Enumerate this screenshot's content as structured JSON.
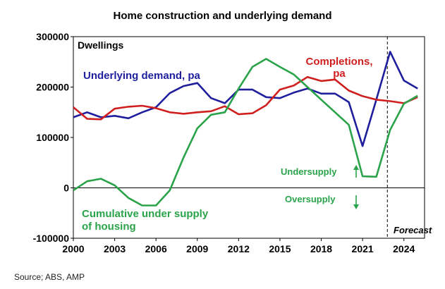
{
  "title": "Home construction and underlying demand",
  "source": "Source; ABS, AMP",
  "chart_data": {
    "type": "line",
    "ylabel": "Dwellings",
    "ylim": [
      -100000,
      300000
    ],
    "xlim": [
      2000,
      2025.5
    ],
    "xticks": [
      2000,
      2003,
      2006,
      2009,
      2012,
      2015,
      2018,
      2021,
      2024
    ],
    "yticks": [
      -100000,
      0,
      100000,
      200000,
      300000
    ],
    "grid": false,
    "forecast_start": 2022.8,
    "annotations": {
      "undersupply": "Undersupply",
      "oversupply": "Oversupply",
      "forecast": "Forecast"
    },
    "series": [
      {
        "name": "Underlying demand, pa",
        "color": "#1f1f9e",
        "x": [
          2000,
          2001,
          2002,
          2003,
          2004,
          2005,
          2006,
          2007,
          2008,
          2009,
          2010,
          2011,
          2012,
          2013,
          2014,
          2015,
          2016,
          2017,
          2018,
          2019,
          2020,
          2021,
          2022,
          2023,
          2024,
          2025
        ],
        "values": [
          140000,
          150000,
          140000,
          143000,
          138000,
          150000,
          160000,
          188000,
          202000,
          208000,
          178000,
          168000,
          195000,
          195000,
          180000,
          178000,
          189000,
          197000,
          187000,
          187000,
          170000,
          83000,
          175000,
          270000,
          213000,
          197000
        ]
      },
      {
        "name": "Completions, pa",
        "color": "#d01f1f",
        "x": [
          2000,
          2001,
          2002,
          2003,
          2004,
          2005,
          2006,
          2007,
          2008,
          2009,
          2010,
          2011,
          2012,
          2013,
          2014,
          2015,
          2016,
          2017,
          2018,
          2019,
          2020,
          2021,
          2022,
          2023,
          2024,
          2025
        ],
        "values": [
          160000,
          137000,
          136000,
          157000,
          161000,
          163000,
          158000,
          150000,
          147000,
          150000,
          152000,
          162000,
          146000,
          148000,
          164000,
          195000,
          203000,
          220000,
          212000,
          215000,
          193000,
          182000,
          175000,
          172000,
          168000,
          180000
        ]
      },
      {
        "name": "Cumulative under supply of housing",
        "color": "#2aa34a",
        "x": [
          2000,
          2001,
          2002,
          2003,
          2004,
          2005,
          2006,
          2007,
          2008,
          2009,
          2010,
          2011,
          2012,
          2013,
          2014,
          2015,
          2016,
          2017,
          2018,
          2019,
          2020,
          2021,
          2022,
          2023,
          2024,
          2025
        ],
        "values": [
          -5000,
          13000,
          18000,
          5000,
          -20000,
          -35000,
          -35000,
          -5000,
          60000,
          118000,
          145000,
          150000,
          197000,
          240000,
          256000,
          240000,
          225000,
          200000,
          175000,
          150000,
          125000,
          23000,
          22000,
          115000,
          167000,
          183000
        ]
      }
    ]
  }
}
